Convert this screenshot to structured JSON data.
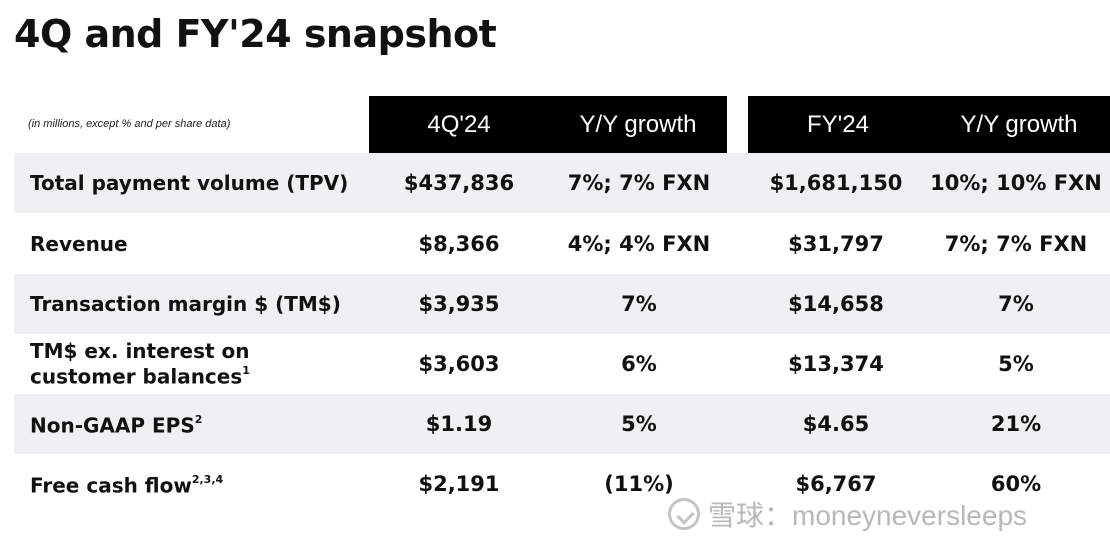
{
  "title": "4Q and FY'24 snapshot",
  "note": "(in millions, except % and per share data)",
  "headers": {
    "q_value": "4Q'24",
    "q_growth": "Y/Y growth",
    "fy_value": "FY'24",
    "fy_growth": "Y/Y growth"
  },
  "rows": [
    {
      "label": "Total payment volume (TPV)",
      "sup": "",
      "q": "$437,836",
      "q_growth": "7%; 7% FXN",
      "fy": "$1,681,150",
      "fy_growth": "10%; 10% FXN"
    },
    {
      "label": "Revenue",
      "sup": "",
      "q": "$8,366",
      "q_growth": "4%; 4% FXN",
      "fy": "$31,797",
      "fy_growth": "7%; 7% FXN"
    },
    {
      "label": "Transaction margin $ (TM$)",
      "sup": "",
      "q": "$3,935",
      "q_growth": "7%",
      "fy": "$14,658",
      "fy_growth": "7%"
    },
    {
      "label": "TM$ ex. interest on customer balances",
      "sup": "1",
      "q": "$3,603",
      "q_growth": "6%",
      "fy": "$13,374",
      "fy_growth": "5%"
    },
    {
      "label": "Non-GAAP EPS",
      "sup": "2",
      "q": "$1.19",
      "q_growth": "5%",
      "fy": "$4.65",
      "fy_growth": "21%"
    },
    {
      "label": "Free cash flow",
      "sup": "2,3,4",
      "q": "$2,191",
      "q_growth": "(11%)",
      "fy": "$6,767",
      "fy_growth": "60%"
    }
  ],
  "watermark": {
    "text": "雪球：moneyneversleeps",
    "icon": "xueqiu-logo-icon"
  }
}
